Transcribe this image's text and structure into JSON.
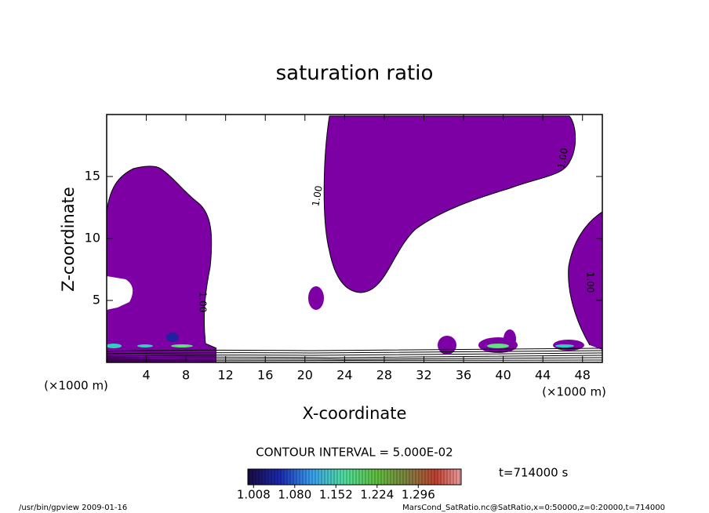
{
  "chart_data": {
    "type": "contour",
    "title": "saturation ratio",
    "x_label": "X-coordinate",
    "y_label": "Z-coordinate",
    "x_unit": "(×1000 m)",
    "xlim": [
      0,
      50
    ],
    "xticks": [
      4,
      8,
      12,
      16,
      20,
      24,
      28,
      32,
      36,
      40,
      44,
      48
    ],
    "ylim": [
      0,
      20
    ],
    "yticks": [
      5,
      10,
      15
    ],
    "contour_labels": [
      "1.00",
      "1.00",
      "1.00",
      "1.00"
    ],
    "fill_color": "#7c00a4",
    "contour_interval": "CONTOUR INTERVAL = 5.000E-02",
    "time": "t=714000 s",
    "colorbar": {
      "clim": [
        0.998,
        1.371
      ],
      "ticks": [
        {
          "value": 1.008,
          "label": "1.008"
        },
        {
          "value": 1.08,
          "label": "1.080"
        },
        {
          "value": 1.152,
          "label": "1.152"
        },
        {
          "value": 1.224,
          "label": "1.224"
        },
        {
          "value": 1.296,
          "label": "1.296"
        }
      ]
    },
    "footer_left": "/usr/bin/gpview  2009-01-16",
    "footer_right": "MarsCond_SatRatio.nc@SatRatio,x=0:50000,z=0:20000,t=714000"
  }
}
